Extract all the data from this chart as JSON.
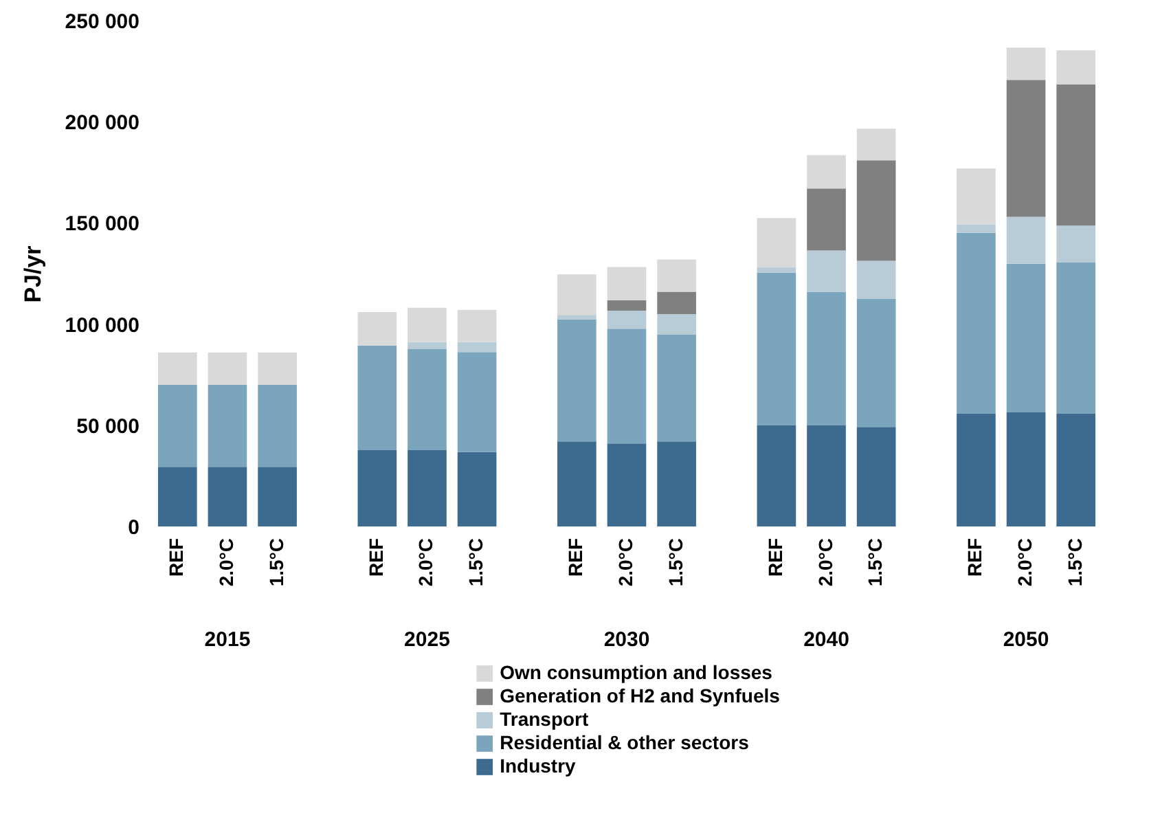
{
  "chart_data": {
    "type": "bar",
    "stacked": true,
    "ylabel": "PJ/yr",
    "categories": [
      "REF",
      "2.0°C",
      "1.5°C",
      null,
      "REF",
      "2.0°C",
      "1.5°C",
      null,
      "REF",
      "2.0°C",
      "1.5°C",
      null,
      "REF",
      "2.0°C",
      "1.5°C",
      null,
      "REF",
      "2.0°C",
      "1.5°C"
    ],
    "annotations": [
      "2015",
      "2025",
      "2030",
      "2040",
      "2050"
    ],
    "ylim": [
      0,
      250000
    ],
    "yticks": [
      {
        "value": 0,
        "label": "0"
      },
      {
        "value": 50000,
        "label": "50 000"
      },
      {
        "value": 100000,
        "label": "100 000"
      },
      {
        "value": 150000,
        "label": "150 000"
      },
      {
        "value": 200000,
        "label": "200 000"
      },
      {
        "value": 250000,
        "label": "250 000"
      }
    ],
    "grid": false,
    "legend": "bottom",
    "series": [
      {
        "name": "Industry",
        "color": "#3d6b8f",
        "values": [
          29500,
          29500,
          29500,
          null,
          37700,
          37700,
          36800,
          null,
          42000,
          41000,
          42000,
          null,
          49900,
          49900,
          49200,
          null,
          55700,
          56400,
          55700
        ]
      },
      {
        "name": "Residential & other sectors",
        "color": "#7ba5bd",
        "values": [
          40500,
          40500,
          40500,
          null,
          51700,
          49900,
          49400,
          null,
          60300,
          56700,
          52800,
          null,
          75600,
          66100,
          63200,
          null,
          89400,
          73400,
          74700
        ]
      },
      {
        "name": "Transport",
        "color": "#b8ccd8",
        "values": [
          null,
          null,
          null,
          null,
          null,
          3600,
          5000,
          null,
          2200,
          9000,
          10200,
          null,
          2700,
          20400,
          18900,
          null,
          4300,
          23200,
          18300
        ]
      },
      {
        "name": "Generation of H2 and Synfuels",
        "color": "#808080",
        "values": [
          0,
          0,
          0,
          null,
          0,
          0,
          0,
          null,
          0,
          5100,
          11000,
          null,
          0,
          30600,
          49700,
          null,
          0,
          67700,
          69700
        ]
      },
      {
        "name": "Own consumption and losses",
        "color": "#d9d9d9",
        "values": [
          16000,
          16000,
          16000,
          null,
          16600,
          16900,
          15800,
          null,
          20100,
          16400,
          16000,
          null,
          24200,
          16500,
          15600,
          null,
          27600,
          16000,
          16900
        ]
      }
    ]
  }
}
